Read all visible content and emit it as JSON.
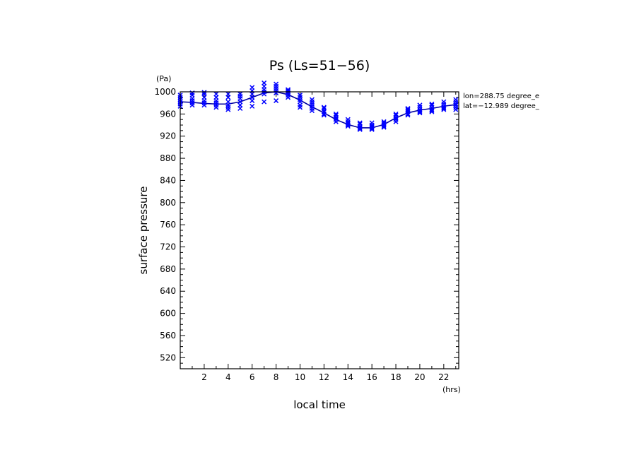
{
  "chart_data": {
    "type": "scatter",
    "title": "Ps (Ls=51−56)",
    "xlabel": "local time",
    "ylabel": "surface pressure",
    "x_unit": "(hrs)",
    "y_unit": "(Pa)",
    "xlim": [
      0,
      23.25
    ],
    "ylim": [
      500,
      1000
    ],
    "x_ticks": [
      2,
      4,
      6,
      8,
      10,
      12,
      14,
      16,
      18,
      20,
      22
    ],
    "y_ticks": [
      520,
      560,
      600,
      640,
      680,
      720,
      760,
      800,
      840,
      880,
      920,
      960,
      1000
    ],
    "annotations": [
      "lon=288.75 degree_e",
      "lat=−12.989 degree_"
    ],
    "marker_color": "#0000ff",
    "line_color": "#0000a0",
    "series": [
      {
        "kind": "line",
        "x": [
          0,
          1,
          2,
          3,
          4,
          5,
          6,
          7,
          8,
          9,
          10,
          11,
          12,
          13,
          14,
          15,
          16,
          17,
          18,
          19,
          20,
          21,
          22,
          23
        ],
        "y": [
          982,
          981,
          979,
          978,
          978,
          982,
          990,
          998,
          1000,
          995,
          985,
          973,
          962,
          950,
          941,
          935,
          935,
          941,
          953,
          962,
          967,
          970,
          974,
          977
        ]
      },
      {
        "kind": "scatter",
        "marker": "x",
        "x": [
          0,
          0,
          0,
          0,
          0,
          0,
          1,
          1,
          1,
          1,
          1,
          1,
          2,
          2,
          2,
          2,
          2,
          2,
          3,
          3,
          3,
          3,
          3,
          3,
          4,
          4,
          4,
          4,
          4,
          4,
          5,
          5,
          5,
          5,
          5,
          5,
          6,
          6,
          6,
          6,
          6,
          6,
          7,
          7,
          7,
          7,
          7,
          7,
          8,
          8,
          8,
          8,
          8,
          8,
          9,
          9,
          9,
          9,
          9,
          9,
          10,
          10,
          10,
          10,
          10,
          10,
          11,
          11,
          11,
          11,
          11,
          11,
          12,
          12,
          12,
          12,
          12,
          12,
          13,
          13,
          13,
          13,
          13,
          13,
          14,
          14,
          14,
          14,
          14,
          14,
          15,
          15,
          15,
          15,
          15,
          15,
          16,
          16,
          16,
          16,
          16,
          16,
          17,
          17,
          17,
          17,
          17,
          17,
          18,
          18,
          18,
          18,
          18,
          18,
          19,
          19,
          19,
          19,
          19,
          19,
          20,
          20,
          20,
          20,
          20,
          20,
          21,
          21,
          21,
          21,
          21,
          21,
          22,
          22,
          22,
          22,
          22,
          22,
          23,
          23,
          23,
          23,
          23,
          23
        ],
        "y": [
          974,
          978,
          982,
          986,
          990,
          994,
          976,
          980,
          984,
          988,
          994,
          998,
          976,
          980,
          984,
          990,
          996,
          999,
          972,
          976,
          980,
          984,
          990,
          996,
          968,
          972,
          976,
          982,
          990,
          996,
          970,
          976,
          982,
          988,
          992,
          996,
          974,
          984,
          990,
          996,
          1002,
          1008,
          982,
          996,
          1000,
          1004,
          1010,
          1016,
          984,
          998,
          1002,
          1006,
          1010,
          1014,
          990,
          994,
          998,
          1000,
          1002,
          1004,
          972,
          976,
          982,
          986,
          990,
          994,
          966,
          970,
          974,
          978,
          982,
          986,
          958,
          960,
          964,
          966,
          970,
          972,
          946,
          950,
          952,
          954,
          958,
          960,
          938,
          940,
          942,
          944,
          946,
          950,
          932,
          934,
          936,
          938,
          942,
          944,
          932,
          934,
          936,
          938,
          940,
          944,
          936,
          938,
          940,
          942,
          944,
          946,
          946,
          950,
          952,
          954,
          958,
          960,
          958,
          960,
          964,
          966,
          968,
          970,
          962,
          964,
          966,
          968,
          972,
          976,
          964,
          966,
          968,
          972,
          976,
          978,
          968,
          970,
          972,
          974,
          978,
          982,
          968,
          972,
          976,
          978,
          982,
          986
        ]
      }
    ]
  }
}
